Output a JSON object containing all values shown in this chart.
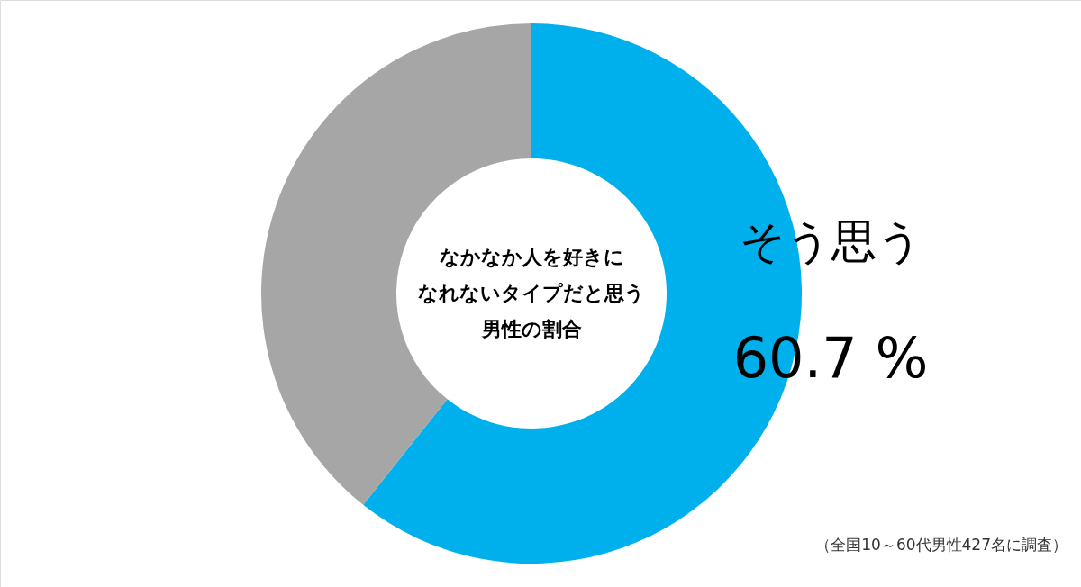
{
  "chart_data": {
    "type": "donut",
    "title": [
      "なかなか人を好きに",
      "なれないタイプだと思う",
      "男性の割合"
    ],
    "categories": [
      "そう思う",
      null
    ],
    "values": [
      60.7,
      39.3
    ],
    "colors": [
      "#00b0ec",
      "#a6a6a6"
    ],
    "value_labels": [
      "60.7 %",
      null
    ],
    "annotations": [
      "（全国10～60代男性427名に調査）"
    ]
  }
}
